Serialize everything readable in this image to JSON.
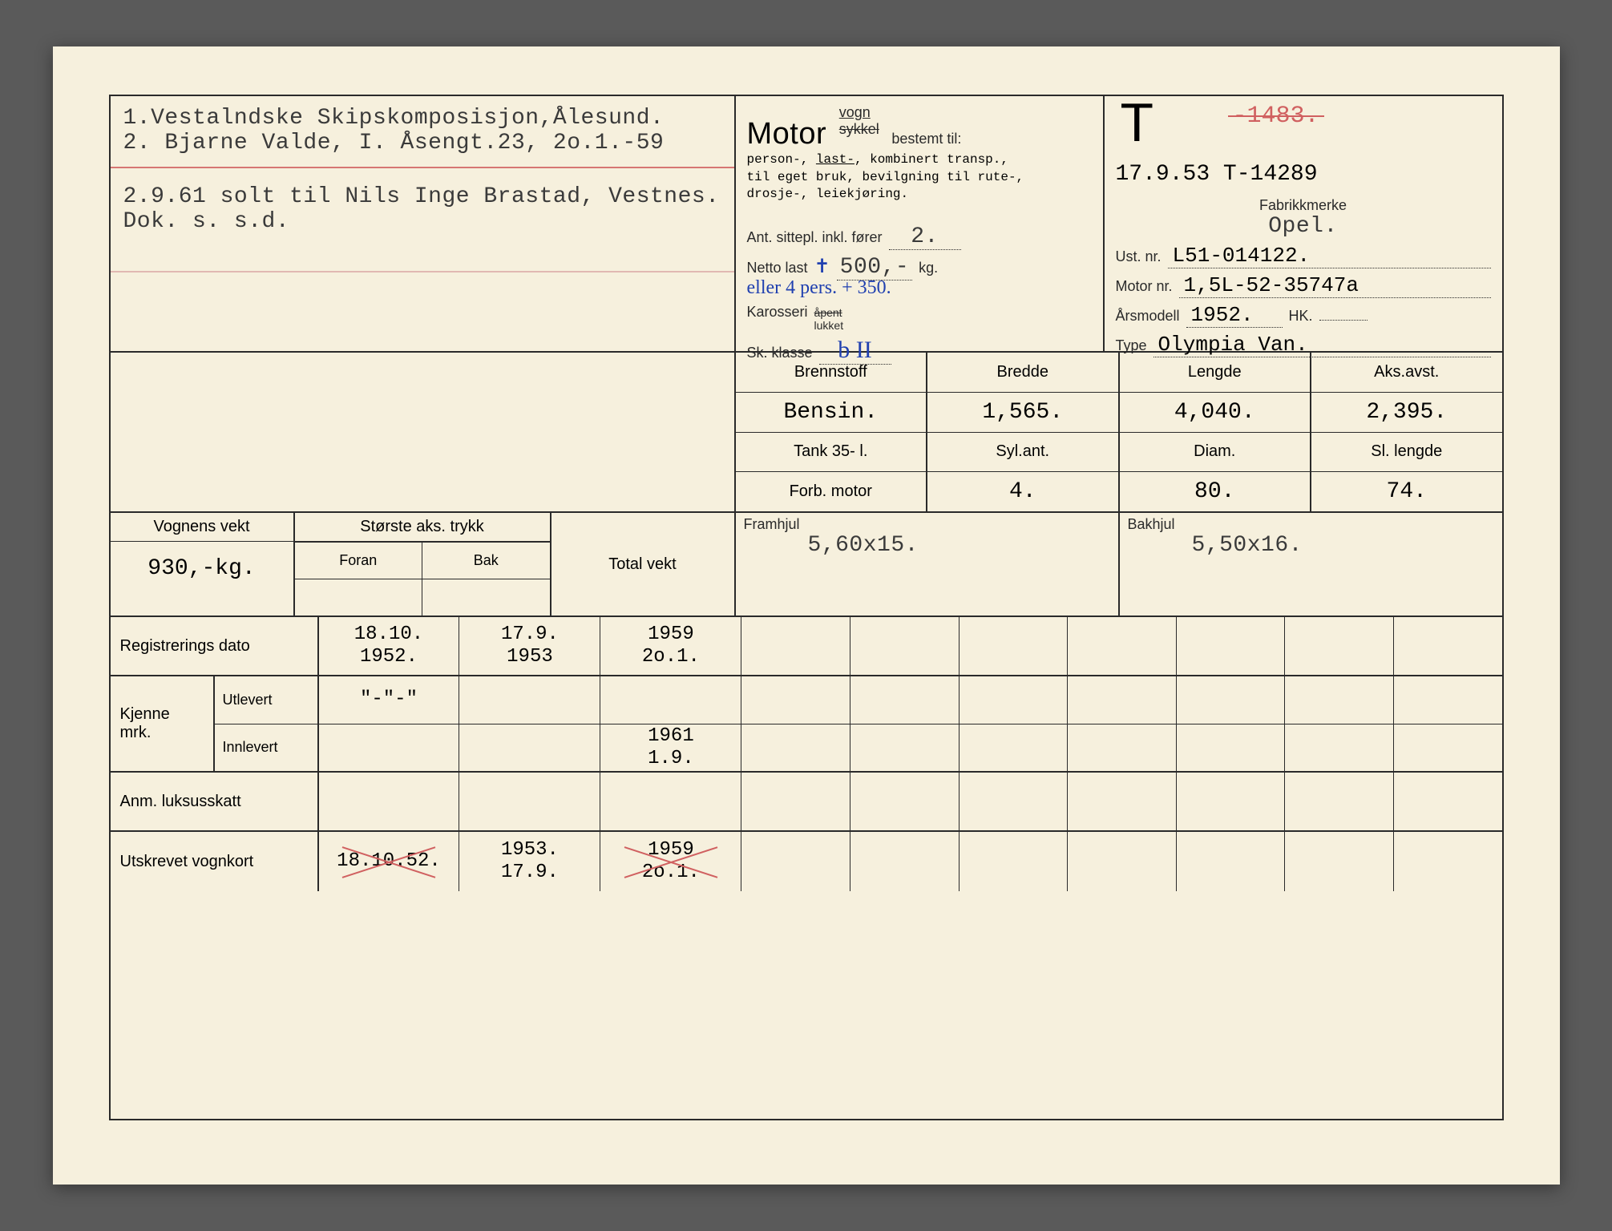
{
  "owners": {
    "line1": "1.Vestalndske Skipskomposisjon,Ålesund.",
    "line2": "2. Bjarne Valde, I. Åsengt.23, 2o.1.-59",
    "line3": "2.9.61 solt til Nils Inge Brastad, Vestnes.",
    "line4": "Dok. s. s.d."
  },
  "motor": {
    "title": "Motor",
    "vogn": "vogn",
    "sykkel": "sykkel",
    "bestemt": "bestemt til:",
    "desc1": "person-, last-, kombinert transp.,",
    "desc2": "til eget bruk, bevilgning til rute-,",
    "desc3": "drosje-, leiekjøring.",
    "ant_label": "Ant. sittepl. inkl. fører",
    "ant_val": "2.",
    "netto_label": "Netto last",
    "netto_sym": "✝",
    "netto_val": "500,-",
    "netto_unit": "kg.",
    "hand_note": "eller 4 pers. + 350.",
    "kaross_label": "Karosseri",
    "kaross_open": "åpent",
    "kaross_lukket": "lukket",
    "sk_label": "Sk. klasse",
    "sk_val": "b  II"
  },
  "reg": {
    "T": "T",
    "old": "-1483.",
    "date_reg": "17.9.53 T-14289",
    "fabrikk_label": "Fabrikkmerke",
    "fabrikk": "Opel.",
    "ust_label": "Ust. nr.",
    "ust": "L51-014122.",
    "motor_label": "Motor nr.",
    "motor": "1,5L-52-35747a",
    "aar_label": "Årsmodell",
    "aar": "1952.",
    "hk_label": "HK.",
    "type_label": "Type",
    "type": "Olympia Van."
  },
  "engine": {
    "hdr": [
      "Brennstoff",
      "Bredde",
      "Lengde",
      "Aks.avst."
    ],
    "row1": [
      "Bensin.",
      "1,565.",
      "4,040.",
      "2,395."
    ],
    "sub": [
      "Tank 35- l.",
      "Syl.ant.",
      "Diam.",
      "Sl. lengde"
    ],
    "row2": [
      "Forb. motor",
      "4.",
      "80.",
      "74."
    ]
  },
  "weight": {
    "vognvekt_label": "Vognens vekt",
    "vognvekt": "930,-kg.",
    "aks_label": "Største aks. trykk",
    "foran": "Foran",
    "bak": "Bak",
    "total_label": "Total vekt",
    "framhjul_label": "Framhjul",
    "framhjul": "5,60x15.",
    "bakhjul_label": "Bakhjul",
    "bakhjul": "5,50x16."
  },
  "bottom": {
    "regdato_label": "Registrerings dato",
    "regdato": [
      "18.10.\n1952.",
      "17.9.\n1953",
      "1959\n2o.1.",
      "",
      "",
      "",
      "",
      "",
      "",
      ""
    ],
    "kjenne_label": "Kjenne mrk.",
    "utlevert_label": "Utlevert",
    "utlevert": [
      "\"-\"-\"",
      "",
      "",
      "",
      "",
      "",
      "",
      "",
      "",
      ""
    ],
    "innlevert_label": "Innlevert",
    "innlevert": [
      "",
      "",
      "1961\n1.9.",
      "",
      "",
      "",
      "",
      "",
      "",
      ""
    ],
    "anm_label": "Anm. luksusskatt",
    "utskrevet_label": "Utskrevet vognkort",
    "utskrevet": [
      "18.10.52.",
      "1953.\n17.9.",
      "1959\n2o.1.",
      "",
      "",
      "",
      "",
      "",
      "",
      ""
    ]
  },
  "colors": {
    "paper": "#f6f0dd",
    "ink": "#2a2a2a",
    "red": "#d06060",
    "blue": "#2040b0"
  }
}
